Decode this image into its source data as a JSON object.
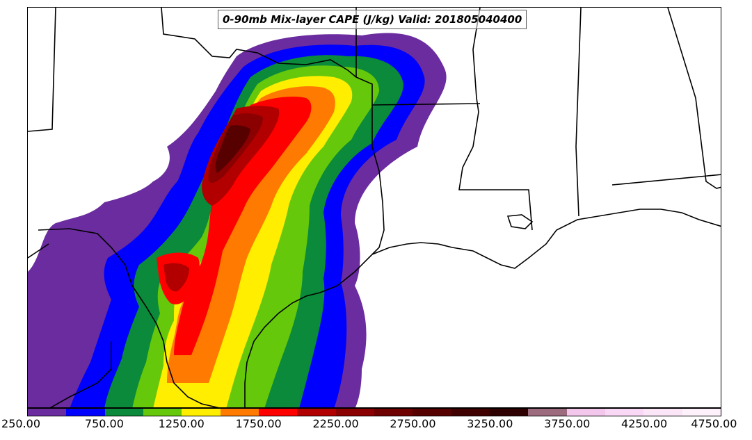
{
  "map": {
    "title": "0-90mb Mix-layer CAPE (J/kg) Valid: 201805040400",
    "field": "0-90mb Mix-layer CAPE",
    "units": "J/kg",
    "valid_time": "201805040400"
  },
  "legend": {
    "min": 250,
    "max": 4750,
    "interval": 250,
    "tick_labels": [
      "250.00",
      "750.00",
      "1250.00",
      "1750.00",
      "2250.00",
      "2750.00",
      "3250.00",
      "3750.00",
      "4250.00",
      "4750.00"
    ],
    "colors": [
      "#6a2c9f",
      "#0000ff",
      "#0a8a3a",
      "#66c80a",
      "#ffee00",
      "#ff7a00",
      "#ff0000",
      "#b20000",
      "#8b0000",
      "#6e0000",
      "#560000",
      "#400000",
      "#2e0000",
      "#9c6b7e",
      "#f3c6ec",
      "#f8d8f4",
      "#fbe6f8",
      "#fdf2fb"
    ]
  },
  "colors": {
    "boundary": "#000000",
    "background": "#ffffff"
  }
}
